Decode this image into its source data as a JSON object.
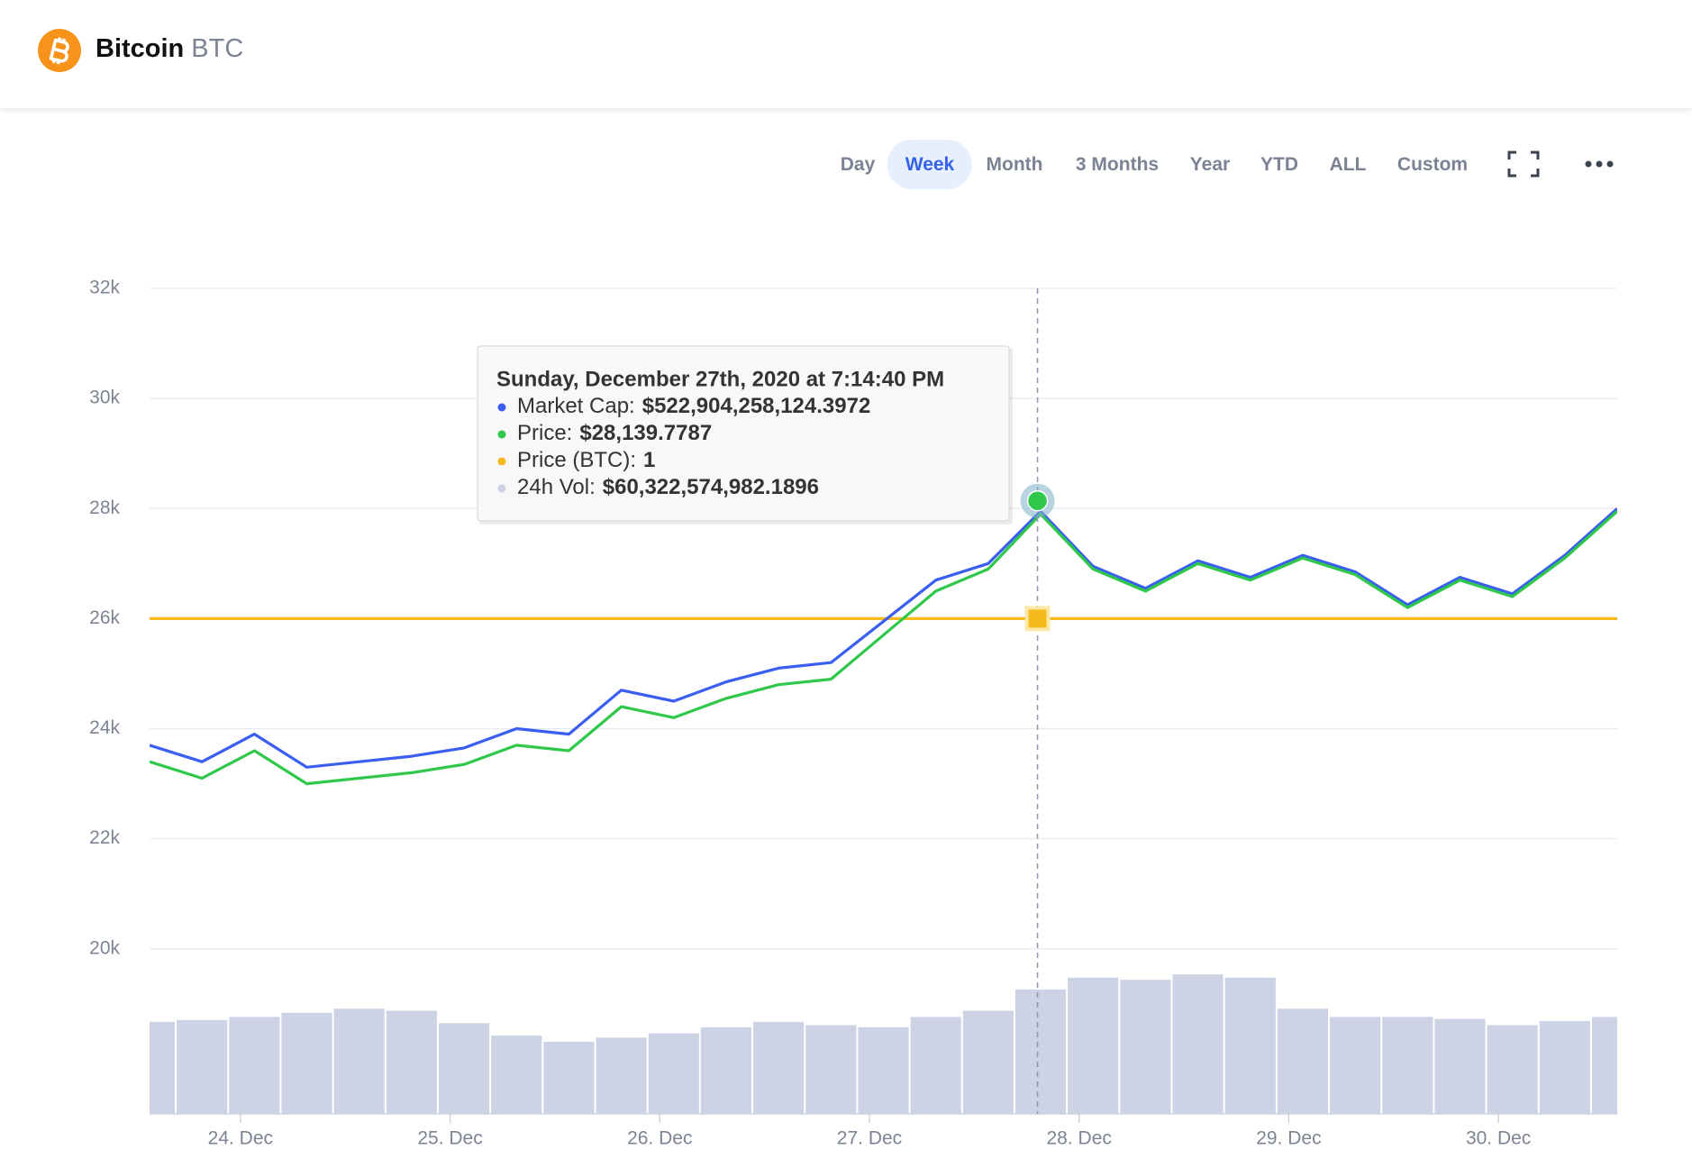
{
  "header": {
    "name": "Bitcoin",
    "symbol": "BTC"
  },
  "tabs": {
    "items": [
      "Day",
      "Week",
      "Month",
      "3 Months",
      "Year",
      "YTD",
      "ALL",
      "Custom"
    ],
    "active": 1
  },
  "chart_data": {
    "type": "line",
    "x": [
      "2020-12-23T13:36",
      "2020-12-23T19:36",
      "2020-12-24T01:36",
      "2020-12-24T07:36",
      "2020-12-24T13:36",
      "2020-12-24T19:36",
      "2020-12-25T01:36",
      "2020-12-25T07:36",
      "2020-12-25T13:36",
      "2020-12-25T19:36",
      "2020-12-26T01:36",
      "2020-12-26T07:36",
      "2020-12-26T13:36",
      "2020-12-26T19:36",
      "2020-12-27T01:36",
      "2020-12-27T07:36",
      "2020-12-27T13:36",
      "2020-12-27T19:36",
      "2020-12-28T01:36",
      "2020-12-28T07:36",
      "2020-12-28T13:36",
      "2020-12-28T19:36",
      "2020-12-29T01:36",
      "2020-12-29T07:36",
      "2020-12-29T13:36",
      "2020-12-29T19:36",
      "2020-12-30T01:36",
      "2020-12-30T07:36",
      "2020-12-30T13:36"
    ],
    "xlim": [
      "2020-12-23T13:36",
      "2020-12-30T13:36"
    ],
    "xticks": [
      {
        "value": "2020-12-24T00:00",
        "label": "24. Dec"
      },
      {
        "value": "2020-12-25T00:00",
        "label": "25. Dec"
      },
      {
        "value": "2020-12-26T00:00",
        "label": "26. Dec"
      },
      {
        "value": "2020-12-27T00:00",
        "label": "27. Dec"
      },
      {
        "value": "2020-12-28T00:00",
        "label": "28. Dec"
      },
      {
        "value": "2020-12-29T00:00",
        "label": "29. Dec"
      },
      {
        "value": "2020-12-30T00:00",
        "label": "30. Dec"
      }
    ],
    "ylim": [
      17000,
      32000
    ],
    "yticks": [
      {
        "value": 20000,
        "label": "20k"
      },
      {
        "value": 22000,
        "label": "22k"
      },
      {
        "value": 24000,
        "label": "24k"
      },
      {
        "value": 26000,
        "label": "26k"
      },
      {
        "value": 28000,
        "label": "28k"
      },
      {
        "value": 30000,
        "label": "30k"
      },
      {
        "value": 32000,
        "label": "32k"
      }
    ],
    "y2lim": [
      315894000000,
      594624000000
    ],
    "y3lim": [
      0,
      400000000000
    ],
    "y4lim": [
      -0.5,
      2
    ],
    "grid": true,
    "series": [
      {
        "type": "bar",
        "axis": "y3",
        "color": "#cdd3e4",
        "values": [
          44600000000,
          45500000000,
          47000000000,
          49000000000,
          51000000000,
          50000000000,
          44000000000,
          38000000000,
          35000000000,
          37000000000,
          39000000000,
          42000000000,
          44600000000,
          43000000000,
          42000000000,
          47000000000,
          50000000000,
          60322574982,
          66000000000,
          65000000000,
          67600000000,
          66000000000,
          51000000000,
          47000000000,
          47000000000,
          46000000000,
          43000000000,
          45000000000,
          47000000000
        ]
      },
      {
        "type": "line",
        "axis": "y4",
        "color": "#f6b91e",
        "values": [
          1,
          1,
          1,
          1,
          1,
          1,
          1,
          1,
          1,
          1,
          1,
          1,
          1,
          1,
          1,
          1,
          1,
          1,
          1,
          1,
          1,
          1,
          1,
          1,
          1,
          1,
          1,
          1,
          1
        ]
      },
      {
        "type": "line",
        "axis": "y2",
        "color": "#3a5ef0",
        "values": [
          440390000000,
          434820000000,
          444110000000,
          432960000000,
          434820000000,
          436680000000,
          439460000000,
          445970000000,
          444110000000,
          458980000000,
          455260000000,
          461760000000,
          466410000000,
          468270000000,
          482200000000,
          496140000000,
          501710000000,
          519370000000,
          500780000000,
          493350000000,
          502640000000,
          497070000000,
          504500000000,
          498930000000,
          487780000000,
          497070000000,
          491490000000,
          504500000000,
          520300000000
        ]
      },
      {
        "type": "line",
        "color": "#2fc84a",
        "values": [
          23400,
          23100,
          23600,
          23000,
          23100,
          23200,
          23350,
          23700,
          23600,
          24400,
          24200,
          24550,
          24800,
          24900,
          25700,
          26500,
          26900,
          27900,
          26900,
          26500,
          27000,
          26700,
          27100,
          26800,
          26200,
          26700,
          26400,
          27100,
          27950
        ]
      }
    ],
    "tooltip": {
      "title": "Sunday, December 27th, 2020 at 7:14:40 PM",
      "x": "2020-12-27T19:14:40",
      "items": [
        {
          "label": "Market Cap:",
          "value": 522904258124.3972,
          "value_label": "$522,904,258,124.3972",
          "series": 2
        },
        {
          "label": "Price:",
          "value": 28139.7787,
          "value_label": "$28,139.7787",
          "series": 3
        },
        {
          "label": "Price (BTC):",
          "value": 1,
          "series": 1
        },
        {
          "label": "24h Vol:",
          "value": 60322574982.1896,
          "value_label": "$60,322,574,982.1896",
          "series": 0
        }
      ]
    }
  }
}
